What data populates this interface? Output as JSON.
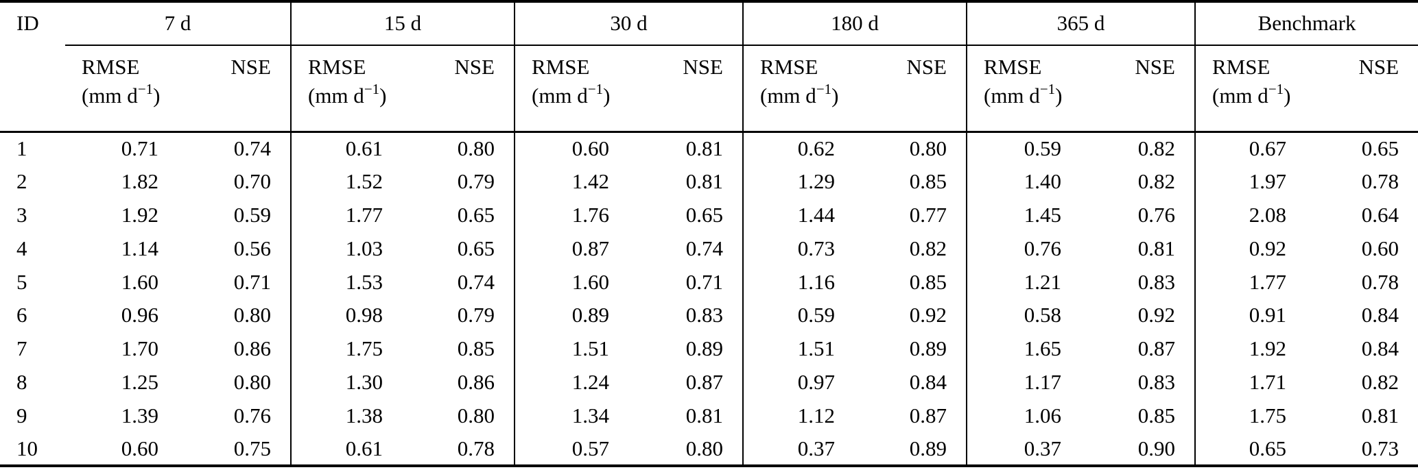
{
  "table": {
    "columns": {
      "id_label": "ID",
      "groups": [
        {
          "label": "7 d"
        },
        {
          "label": "15 d"
        },
        {
          "label": "30 d"
        },
        {
          "label": "180 d"
        },
        {
          "label": "365 d"
        },
        {
          "label": "Benchmark"
        }
      ],
      "metric_rmse": "RMSE",
      "metric_nse": "NSE",
      "unit_open": "(mm d",
      "unit_exp": "−1",
      "unit_close": ")"
    },
    "rows": [
      {
        "id": "1",
        "values": [
          "0.71",
          "0.74",
          "0.61",
          "0.80",
          "0.60",
          "0.81",
          "0.62",
          "0.80",
          "0.59",
          "0.82",
          "0.67",
          "0.65"
        ]
      },
      {
        "id": "2",
        "values": [
          "1.82",
          "0.70",
          "1.52",
          "0.79",
          "1.42",
          "0.81",
          "1.29",
          "0.85",
          "1.40",
          "0.82",
          "1.97",
          "0.78"
        ]
      },
      {
        "id": "3",
        "values": [
          "1.92",
          "0.59",
          "1.77",
          "0.65",
          "1.76",
          "0.65",
          "1.44",
          "0.77",
          "1.45",
          "0.76",
          "2.08",
          "0.64"
        ]
      },
      {
        "id": "4",
        "values": [
          "1.14",
          "0.56",
          "1.03",
          "0.65",
          "0.87",
          "0.74",
          "0.73",
          "0.82",
          "0.76",
          "0.81",
          "0.92",
          "0.60"
        ]
      },
      {
        "id": "5",
        "values": [
          "1.60",
          "0.71",
          "1.53",
          "0.74",
          "1.60",
          "0.71",
          "1.16",
          "0.85",
          "1.21",
          "0.83",
          "1.77",
          "0.78"
        ]
      },
      {
        "id": "6",
        "values": [
          "0.96",
          "0.80",
          "0.98",
          "0.79",
          "0.89",
          "0.83",
          "0.59",
          "0.92",
          "0.58",
          "0.92",
          "0.91",
          "0.84"
        ]
      },
      {
        "id": "7",
        "values": [
          "1.70",
          "0.86",
          "1.75",
          "0.85",
          "1.51",
          "0.89",
          "1.51",
          "0.89",
          "1.65",
          "0.87",
          "1.92",
          "0.84"
        ]
      },
      {
        "id": "8",
        "values": [
          "1.25",
          "0.80",
          "1.30",
          "0.86",
          "1.24",
          "0.87",
          "0.97",
          "0.84",
          "1.17",
          "0.83",
          "1.71",
          "0.82"
        ]
      },
      {
        "id": "9",
        "values": [
          "1.39",
          "0.76",
          "1.38",
          "0.80",
          "1.34",
          "0.81",
          "1.12",
          "0.87",
          "1.06",
          "0.85",
          "1.75",
          "0.81"
        ]
      },
      {
        "id": "10",
        "values": [
          "0.60",
          "0.75",
          "0.61",
          "0.78",
          "0.57",
          "0.80",
          "0.37",
          "0.89",
          "0.37",
          "0.90",
          "0.65",
          "0.73"
        ]
      }
    ]
  }
}
